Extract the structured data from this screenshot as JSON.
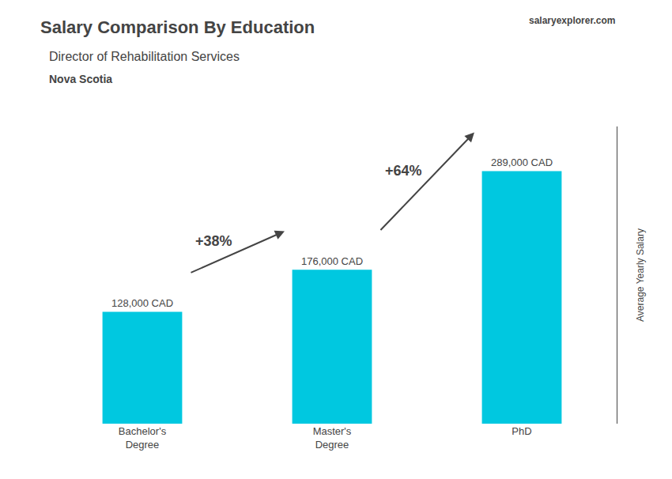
{
  "chart_data": {
    "type": "bar",
    "title": "Salary Comparison By Education",
    "subtitle": [
      "Director of Rehabilitation Services",
      "Nova Scotia"
    ],
    "source": "salaryexplorer.com",
    "ylabel": "Average Yearly Salary",
    "categories": [
      "Bachelor's\nDegree",
      "Master's\nDegree",
      "PhD"
    ],
    "values": [
      128000,
      176000,
      289000
    ],
    "value_labels": [
      "128,000 CAD",
      "176,000 CAD",
      "289,000 CAD"
    ],
    "data_labels": true,
    "color": "#00c8e0",
    "annotations": [
      "+38%",
      "+64%"
    ],
    "ylim": [
      0,
      340000
    ],
    "grid": false,
    "tick_labels": "x"
  }
}
